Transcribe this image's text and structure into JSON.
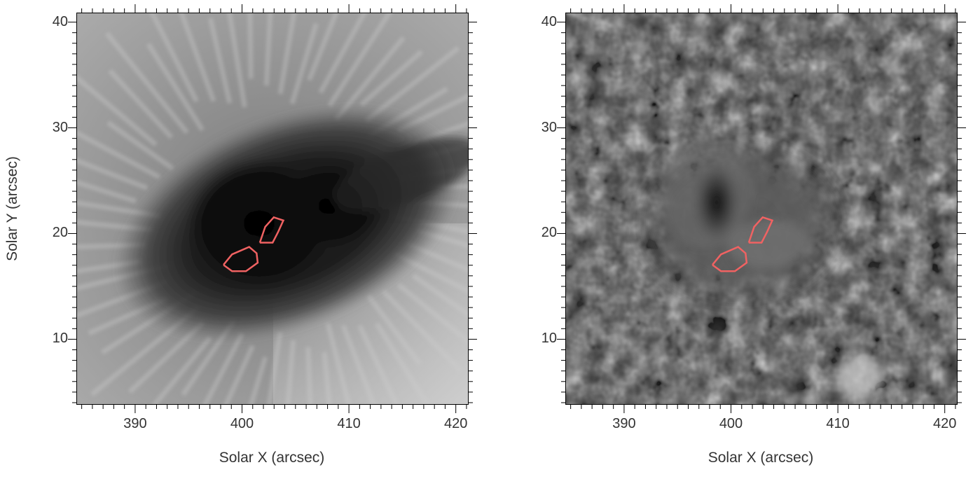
{
  "figure": {
    "panels": [
      {
        "id": "left",
        "image_type": "grayscale solar intensity map",
        "contour_color": "#f06262"
      },
      {
        "id": "right",
        "image_type": "grayscale high-contrast solar map",
        "contour_color": "#f06262"
      }
    ],
    "x_axis": {
      "label": "Solar X (arcsec)",
      "range": [
        384.5,
        421.2
      ],
      "ticks": [
        "390",
        "400",
        "410",
        "420"
      ]
    },
    "y_axis": {
      "label": "Solar Y (arcsec)",
      "range": [
        3.8,
        40.9
      ],
      "ticks": [
        "10",
        "20",
        "30",
        "40"
      ]
    },
    "contours": [
      {
        "name": "upper-small-contour",
        "points_arcsec": [
          [
            401.6,
            19.2
          ],
          [
            402.1,
            20.7
          ],
          [
            402.9,
            21.6
          ],
          [
            403.8,
            21.3
          ],
          [
            403.3,
            20.2
          ],
          [
            402.8,
            19.2
          ]
        ]
      },
      {
        "name": "lower-large-contour",
        "points_arcsec": [
          [
            398.2,
            17.1
          ],
          [
            399.0,
            18.1
          ],
          [
            400.6,
            18.8
          ],
          [
            401.3,
            18.2
          ],
          [
            401.4,
            17.3
          ],
          [
            400.3,
            16.5
          ],
          [
            399.0,
            16.5
          ]
        ]
      }
    ]
  }
}
